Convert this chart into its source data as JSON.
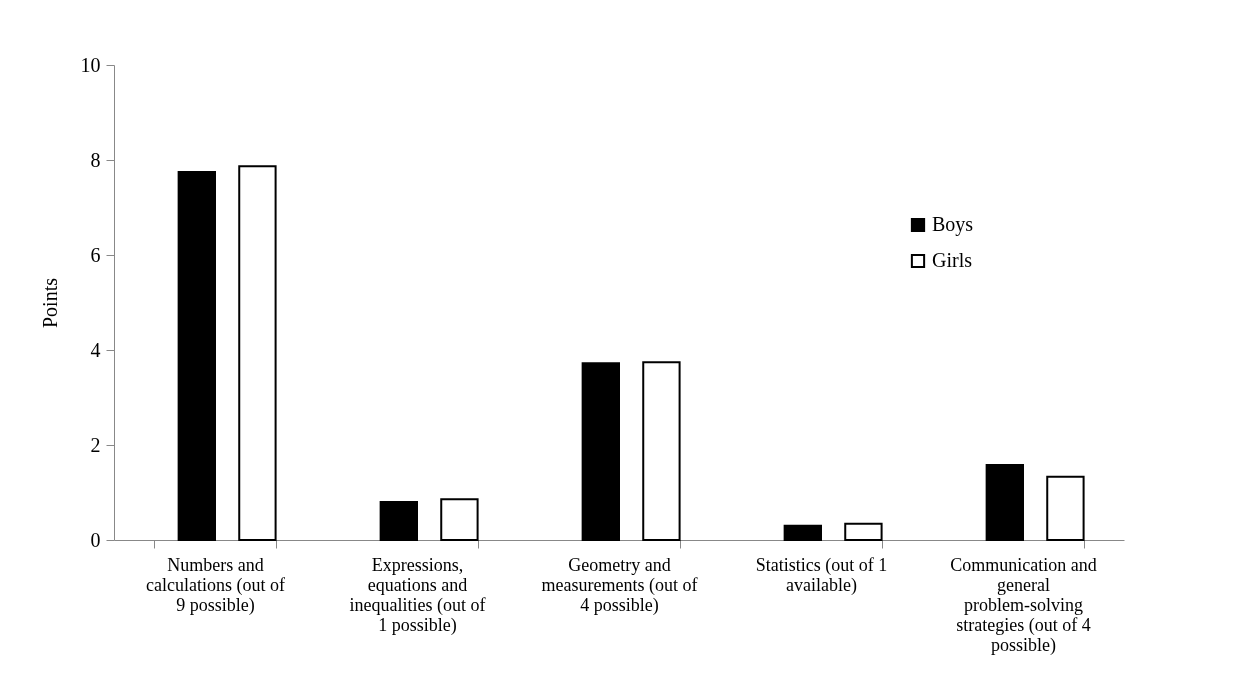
{
  "chart_data": {
    "type": "bar",
    "ylabel": "Points",
    "categories": [
      "Numbers and calculations (out of 9 possible)",
      "Expressions, equations and inequalities (out of 1 possible)",
      "Geometry and measurements (out of 4 possible)",
      "Statistics (out of 1 available)",
      "Communication and general problem-solving strategies (out of 4 possible)"
    ],
    "series": [
      {
        "name": "Boys",
        "color": "#000000",
        "values": [
          7.75,
          0.8,
          3.72,
          0.3,
          1.58
        ]
      },
      {
        "name": "Girls",
        "color": "#ffffff",
        "values": [
          7.87,
          0.86,
          3.74,
          0.34,
          1.33
        ]
      }
    ],
    "ylim": [
      0,
      10
    ],
    "yticks": [
      0,
      2,
      4,
      6,
      8,
      10
    ],
    "grid": false,
    "legend": "top right"
  }
}
